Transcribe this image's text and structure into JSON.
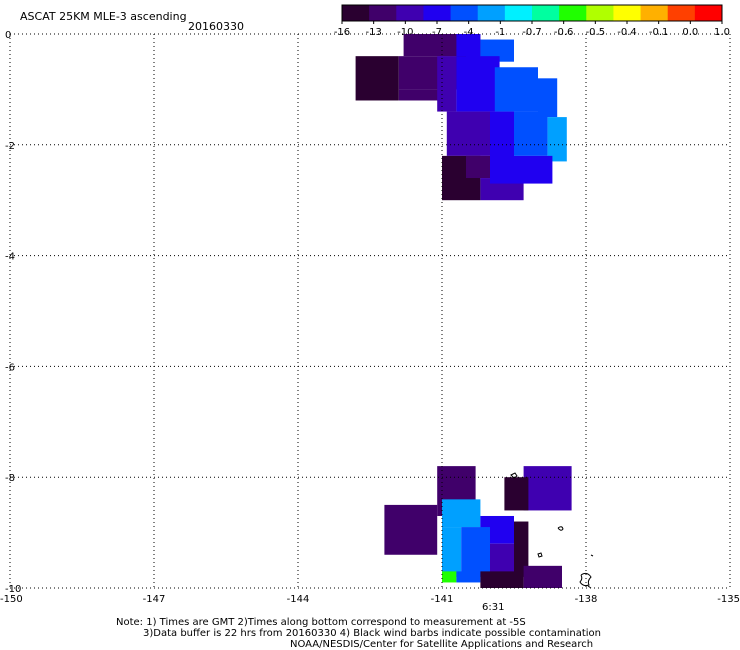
{
  "header": {
    "title": "ASCAT 25KM MLE-3 ascending",
    "date": "20160330"
  },
  "colorbar": {
    "labels": [
      "-16",
      "-13",
      "-10",
      "-7",
      "-4",
      "-1",
      "-0.7",
      "-0.6",
      "-0.5",
      "-0.4",
      "-0.1",
      "0.0",
      "1.0"
    ],
    "colors": [
      "#2a0030",
      "#40006a",
      "#3f00b0",
      "#2000f0",
      "#0050ff",
      "#00a0ff",
      "#00f0ff",
      "#00ffa0",
      "#20ff00",
      "#b0ff00",
      "#ffff00",
      "#ffb000",
      "#ff4000",
      "#ff0000"
    ]
  },
  "axes": {
    "x_ticks": [
      "-150",
      "-147",
      "-144",
      "-141",
      "-138",
      "-135"
    ],
    "y_ticks": [
      "0",
      "-2",
      "-4",
      "-6",
      "-8",
      "-10"
    ],
    "x_range": [
      -150,
      -135
    ],
    "y_range": [
      -10,
      0
    ]
  },
  "time_marker": {
    "label": "6:31",
    "color": "#cc2200"
  },
  "notes": {
    "line1": "Note: 1) Times are GMT 2)Times along bottom correspond to measurement at -5S",
    "line2": "3)Data buffer is 22 hrs from 20160330 4) Black wind barbs indicate possible contamination",
    "line3": "NOAA/NESDIS/Center for Satellite Applications and Research"
  },
  "chart_data": {
    "type": "heatmap",
    "x_unit": "longitude (deg)",
    "y_unit": "latitude (deg)",
    "xlim": [
      -150,
      -135
    ],
    "ylim": [
      -10,
      0
    ],
    "cells": [
      {
        "lon": [
          -141.8,
          -140.2
        ],
        "lat": [
          0,
          -0.4
        ],
        "c": "#40006a"
      },
      {
        "lon": [
          -140.7,
          -140.2
        ],
        "lat": [
          0,
          -0.5
        ],
        "c": "#2000f0"
      },
      {
        "lon": [
          -140.2,
          -139.5
        ],
        "lat": [
          -0.1,
          -0.5
        ],
        "c": "#0050ff"
      },
      {
        "lon": [
          -142.8,
          -141.9
        ],
        "lat": [
          -0.4,
          -1.2
        ],
        "c": "#2a0030"
      },
      {
        "lon": [
          -141.9,
          -140.5
        ],
        "lat": [
          -0.4,
          -1.0
        ],
        "c": "#40006a"
      },
      {
        "lon": [
          -141.9,
          -141.0
        ],
        "lat": [
          -1.0,
          -1.2
        ],
        "c": "#40006a"
      },
      {
        "lon": [
          -141.1,
          -140.7
        ],
        "lat": [
          -0.4,
          -1.4
        ],
        "c": "#3f00b0"
      },
      {
        "lon": [
          -140.7,
          -139.8
        ],
        "lat": [
          -0.4,
          -1.4
        ],
        "c": "#2000f0"
      },
      {
        "lon": [
          -139.9,
          -139.0
        ],
        "lat": [
          -0.6,
          -1.4
        ],
        "c": "#0050ff"
      },
      {
        "lon": [
          -139.0,
          -138.6
        ],
        "lat": [
          -0.8,
          -1.5
        ],
        "c": "#0050ff"
      },
      {
        "lon": [
          -140.9,
          -140.0
        ],
        "lat": [
          -1.4,
          -2.2
        ],
        "c": "#3f00b0"
      },
      {
        "lon": [
          -140.0,
          -139.5
        ],
        "lat": [
          -1.4,
          -2.3
        ],
        "c": "#2000f0"
      },
      {
        "lon": [
          -139.5,
          -138.8
        ],
        "lat": [
          -1.4,
          -2.2
        ],
        "c": "#0050ff"
      },
      {
        "lon": [
          -138.8,
          -138.4
        ],
        "lat": [
          -1.5,
          -2.3
        ],
        "c": "#00a0ff"
      },
      {
        "lon": [
          -141.0,
          -140.2
        ],
        "lat": [
          -2.2,
          -3.0
        ],
        "c": "#2a0030"
      },
      {
        "lon": [
          -140.5,
          -140.0
        ],
        "lat": [
          -2.2,
          -2.6
        ],
        "c": "#40006a"
      },
      {
        "lon": [
          -140.2,
          -139.3
        ],
        "lat": [
          -2.6,
          -3.0
        ],
        "c": "#3f00b0"
      },
      {
        "lon": [
          -140.0,
          -138.7
        ],
        "lat": [
          -2.2,
          -2.7
        ],
        "c": "#2000f0"
      },
      {
        "lon": [
          -141.1,
          -140.3
        ],
        "lat": [
          -7.8,
          -8.7
        ],
        "c": "#40006a"
      },
      {
        "lon": [
          -139.3,
          -138.3
        ],
        "lat": [
          -7.8,
          -8.6
        ],
        "c": "#3f00b0"
      },
      {
        "lon": [
          -139.7,
          -139.2
        ],
        "lat": [
          -8.0,
          -8.6
        ],
        "c": "#2a0030"
      },
      {
        "lon": [
          -142.2,
          -141.1
        ],
        "lat": [
          -8.5,
          -9.4
        ],
        "c": "#40006a"
      },
      {
        "lon": [
          -141.0,
          -140.2
        ],
        "lat": [
          -8.4,
          -8.9
        ],
        "c": "#00a0ff"
      },
      {
        "lon": [
          -140.2,
          -139.5
        ],
        "lat": [
          -8.7,
          -9.2
        ],
        "c": "#2000f0"
      },
      {
        "lon": [
          -139.5,
          -139.2
        ],
        "lat": [
          -8.8,
          -9.8
        ],
        "c": "#2a0030"
      },
      {
        "lon": [
          -141.0,
          -140.6
        ],
        "lat": [
          -8.9,
          -9.8
        ],
        "c": "#00a0ff"
      },
      {
        "lon": [
          -140.6,
          -140.0
        ],
        "lat": [
          -8.9,
          -9.8
        ],
        "c": "#0050ff"
      },
      {
        "lon": [
          -140.0,
          -139.5
        ],
        "lat": [
          -9.2,
          -9.8
        ],
        "c": "#3f00b0"
      },
      {
        "lon": [
          -141.0,
          -140.7
        ],
        "lat": [
          -9.7,
          -9.9
        ],
        "c": "#20ff00"
      },
      {
        "lon": [
          -140.7,
          -140.2
        ],
        "lat": [
          -9.7,
          -9.9
        ],
        "c": "#0050ff"
      },
      {
        "lon": [
          -140.2,
          -139.3
        ],
        "lat": [
          -9.7,
          -10.0
        ],
        "c": "#2a0030"
      },
      {
        "lon": [
          -139.3,
          -138.5
        ],
        "lat": [
          -9.6,
          -10.0
        ],
        "c": "#40006a"
      }
    ]
  }
}
